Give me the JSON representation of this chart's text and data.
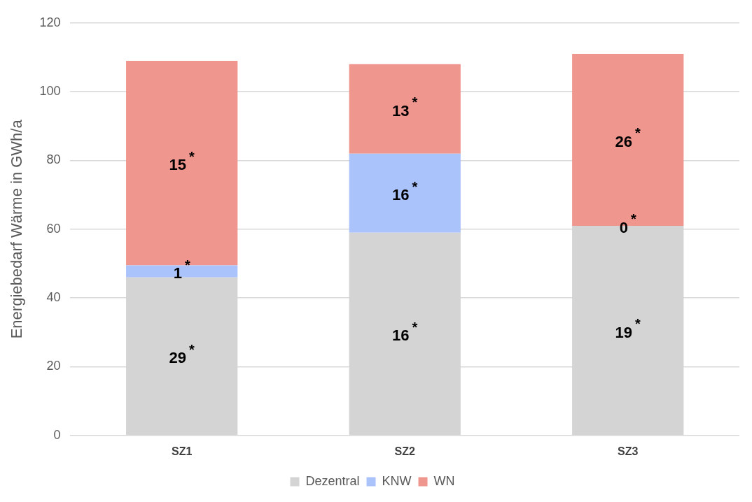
{
  "chart_data": {
    "type": "bar",
    "stacked": true,
    "ylabel": "Energiebedarf Wärme in GWh/a",
    "categories": [
      "SZ1",
      "SZ2",
      "SZ3"
    ],
    "series": [
      {
        "name": "Dezentral",
        "color": "#d4d4d4",
        "values": [
          46,
          59,
          61
        ]
      },
      {
        "name": "KNW",
        "color": "#abc3fb",
        "values": [
          3.5,
          23,
          0
        ]
      },
      {
        "name": "WN",
        "color": "#ef968e",
        "values": [
          59.5,
          26,
          50
        ]
      }
    ],
    "annotations": [
      "29$^{*}$",
      "1$^{*}$",
      "15$^{*}$",
      "16$^{*}$",
      "16$^{*}$",
      "13$^{*}$",
      "19$^{*}$",
      "0$^{*}$",
      "26$^{*}$"
    ],
    "ylim": [
      0,
      120
    ],
    "yticks": [
      0,
      20,
      40,
      60,
      80,
      100,
      120
    ],
    "grid": "y",
    "legend": "bottom"
  }
}
